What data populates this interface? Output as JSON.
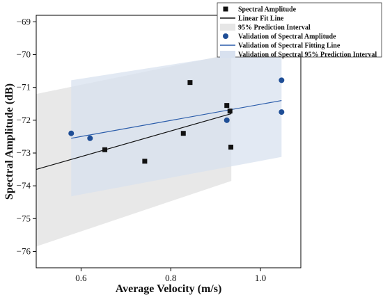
{
  "chart_data": {
    "type": "scatter",
    "title": "",
    "xlabel": "Average Velocity (m/s)",
    "ylabel": "Spectral Amplitude (dB)",
    "xlim": [
      0.5,
      1.09
    ],
    "ylim": [
      -76.5,
      -68.8
    ],
    "xticks": [
      0.6,
      0.8,
      1.0
    ],
    "xtick_labels": [
      "0.6",
      "0.8",
      "1.0"
    ],
    "yticks": [
      -76,
      -75,
      -74,
      -73,
      -72,
      -71,
      -70,
      -69
    ],
    "ytick_labels": [
      "−76",
      "−75",
      "−74",
      "−73",
      "−72",
      "−71",
      "−70",
      "−69"
    ],
    "grid": false,
    "legend_position": "top-right",
    "colors": {
      "spectral": "#111111",
      "fit_line": "#111111",
      "pred_band": "#e6e6e6",
      "validation": "#1f4e96",
      "validation_line": "#2a5caa",
      "validation_band": "#d8e1ef"
    },
    "series": [
      {
        "name": "Spectral Amplitude",
        "kind": "points",
        "marker": "square",
        "x": [
          0.653,
          0.742,
          0.828,
          0.843,
          0.925,
          0.932,
          0.934
        ],
        "y": [
          -72.9,
          -73.25,
          -72.4,
          -70.85,
          -71.55,
          -71.72,
          -72.82
        ]
      },
      {
        "name": "Linear Fit Line",
        "kind": "line",
        "x": [
          0.5,
          0.935
        ],
        "y": [
          -73.5,
          -71.8
        ]
      },
      {
        "name": "95% Prediction Interval",
        "kind": "band",
        "x": [
          0.5,
          0.935
        ],
        "upper": [
          -71.2,
          -69.98
        ],
        "lower": [
          -75.85,
          -73.85
        ]
      },
      {
        "name": "Validation of Spectral Amplitude",
        "kind": "points",
        "marker": "circle",
        "x": [
          0.578,
          0.62,
          0.925,
          1.047,
          1.047
        ],
        "y": [
          -72.4,
          -72.55,
          -72.0,
          -70.78,
          -71.75
        ]
      },
      {
        "name": "Validation of Spectral Fitting Line",
        "kind": "line",
        "x": [
          0.578,
          1.047
        ],
        "y": [
          -72.55,
          -71.4
        ]
      },
      {
        "name": "Validation of Spectral 95% Prediction Interval",
        "kind": "band",
        "x": [
          0.578,
          1.047
        ],
        "upper": [
          -70.78,
          -69.78
        ],
        "lower": [
          -74.32,
          -73.12
        ]
      }
    ]
  }
}
